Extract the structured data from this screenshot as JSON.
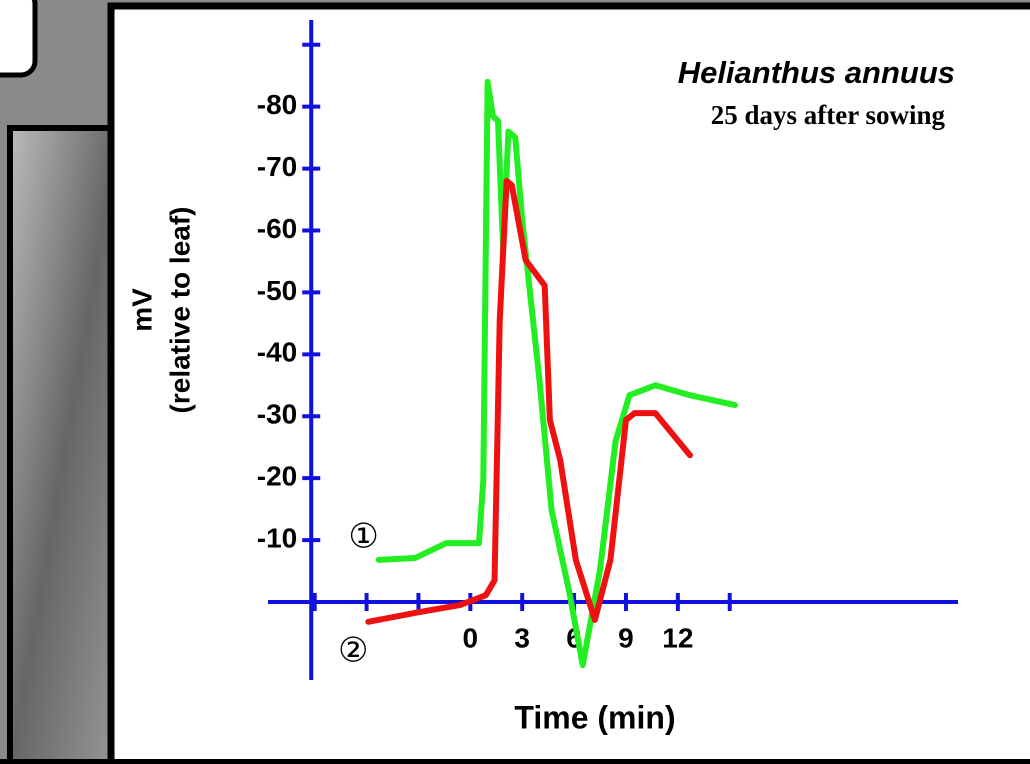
{
  "chart_data": {
    "type": "line",
    "title": "Helianthus annuus",
    "subtitle": "25 days after sowing",
    "x_label": "Time (min)",
    "y_label": [
      "mV",
      "(relative to leaf)"
    ],
    "xlim": [
      -11.7,
      28.2
    ],
    "ylim": [
      12.6,
      -94
    ],
    "xticks": [
      0,
      3,
      6,
      9,
      12
    ],
    "xticks_unlabeled": [
      -9,
      -6,
      -3,
      15
    ],
    "yticks": [
      -10,
      -20,
      -30,
      -40,
      -50,
      -60,
      -70,
      -80
    ],
    "yticks_unlabeled": [
      -90
    ],
    "y_axis_at_x": -9.2,
    "series": [
      {
        "name": "①",
        "color": "#22ee22",
        "x": [
          -5.3,
          -3.2,
          -1.4,
          0.5,
          0.75,
          1.0,
          1.3,
          1.6,
          1.9,
          2.2,
          2.6,
          3.0,
          3.5,
          4.0,
          4.7,
          5.7,
          6.5,
          7.5,
          8.4,
          9.2,
          10.7,
          12.7,
          15.3
        ],
        "values": [
          -6.8,
          -7.1,
          -9.5,
          -9.5,
          -19.7,
          -84,
          -78.5,
          -77.7,
          -56.8,
          -76,
          -75,
          -61.6,
          -48.7,
          -35.8,
          -14.8,
          -1.9,
          10.2,
          -5.2,
          -26,
          -33.4,
          -35,
          -33.4,
          -31.8
        ]
      },
      {
        "name": "②",
        "color": "#ee1111",
        "x": [
          -5.9,
          -2.9,
          -0.6,
          0.9,
          1.4,
          1.7,
          2.1,
          2.4,
          3.2,
          4.3,
          4.6,
          5.2,
          6.1,
          7.2,
          8.1,
          9.0,
          9.5,
          10.7,
          12.7
        ],
        "values": [
          3.2,
          1.6,
          0.5,
          -1.1,
          -3.5,
          -45.5,
          -68,
          -67.3,
          -55.2,
          -51.1,
          -29.4,
          -22.9,
          -6.8,
          2.9,
          -6.8,
          -29.4,
          -30.5,
          -30.5,
          -23.7
        ]
      }
    ]
  }
}
